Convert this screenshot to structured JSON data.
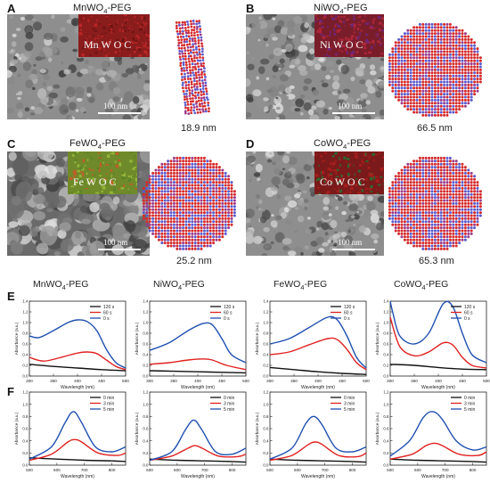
{
  "panels": [
    {
      "letter": "A",
      "material": "MnWO",
      "sub": "4",
      "suffix": "-PEG",
      "inset_label": "Mn W O C",
      "scale": "100 nm",
      "size": "18.9 nm",
      "inset_color": "#8a1c1c"
    },
    {
      "letter": "B",
      "material": "NiWO",
      "sub": "4",
      "suffix": "-PEG",
      "inset_label": "Ni W O C",
      "scale": "100 nm",
      "size": "66.5 nm",
      "inset_color": "#7a1d2a"
    },
    {
      "letter": "C",
      "material": "FeWO",
      "sub": "4",
      "suffix": "-PEG",
      "inset_label": "Fe W O C",
      "scale": "100 nm",
      "size": "25.2 nm",
      "inset_color": "#6f8a2a"
    },
    {
      "letter": "D",
      "material": "CoWO",
      "sub": "4",
      "suffix": "-PEG",
      "inset_label": "Co W O C",
      "scale": "100 nm",
      "size": "65.3 nm",
      "inset_color": "#7a1a1a"
    }
  ],
  "row_labels": {
    "E": "E",
    "F": "F"
  },
  "colors": {
    "black": "#111111",
    "red": "#e02020",
    "blue": "#1f4fb0"
  },
  "chart_data": [
    {
      "id": "E1",
      "type": "line",
      "title": "MnWO",
      "title_sub": "4",
      "title_suffix": "-PEG",
      "xlabel": "Wavelength (nm)",
      "ylabel": "Absorbance (a.u.)",
      "xlim": [
        300,
        500
      ],
      "ylim": [
        0,
        1.4
      ],
      "xticks": [
        "300",
        "350",
        "400",
        "450",
        "500"
      ],
      "yticks": [
        "0.0",
        "0.2",
        "0.4",
        "0.6",
        "0.8",
        "1.0",
        "1.2",
        "1.4"
      ],
      "legend": [
        "120 s",
        "60 s",
        "0 s"
      ],
      "series": [
        {
          "name": "120 s",
          "color": "black",
          "x": [
            300,
            350,
            400,
            450,
            500
          ],
          "y": [
            0.22,
            0.18,
            0.15,
            0.12,
            0.1
          ]
        },
        {
          "name": "60 s",
          "color": "red",
          "x": [
            300,
            330,
            370,
            400,
            420,
            440,
            460,
            480,
            500
          ],
          "y": [
            0.35,
            0.28,
            0.36,
            0.43,
            0.45,
            0.42,
            0.3,
            0.18,
            0.12
          ]
        },
        {
          "name": "0 s",
          "color": "blue",
          "x": [
            300,
            320,
            350,
            380,
            400,
            420,
            440,
            460,
            480,
            500
          ],
          "y": [
            0.75,
            0.72,
            0.85,
            1.0,
            1.05,
            1.02,
            0.85,
            0.5,
            0.25,
            0.15
          ]
        }
      ]
    },
    {
      "id": "E2",
      "type": "line",
      "title": "NiWO",
      "title_sub": "4",
      "title_suffix": "-PEG",
      "xlabel": "Wavelength (nm)",
      "ylabel": "Absorbance (a.u.)",
      "xlim": [
        300,
        500
      ],
      "ylim": [
        0,
        1.4
      ],
      "xticks": [
        "300",
        "350",
        "400",
        "450",
        "500"
      ],
      "yticks": [
        "0.0",
        "0.2",
        "0.4",
        "0.6",
        "0.8",
        "1.0",
        "1.2",
        "1.4"
      ],
      "legend": [
        "120 s",
        "60 s",
        "0 s"
      ],
      "series": [
        {
          "name": "120 s",
          "color": "black",
          "x": [
            300,
            350,
            400,
            450,
            500
          ],
          "y": [
            0.1,
            0.09,
            0.08,
            0.07,
            0.06
          ]
        },
        {
          "name": "60 s",
          "color": "red",
          "x": [
            300,
            340,
            380,
            410,
            430,
            460,
            500
          ],
          "y": [
            0.22,
            0.25,
            0.3,
            0.32,
            0.3,
            0.2,
            0.12
          ]
        },
        {
          "name": "0 s",
          "color": "blue",
          "x": [
            300,
            340,
            380,
            410,
            430,
            450,
            470,
            500
          ],
          "y": [
            0.48,
            0.62,
            0.85,
            0.98,
            0.96,
            0.7,
            0.4,
            0.25
          ]
        }
      ]
    },
    {
      "id": "E3",
      "type": "line",
      "title": "FeWO",
      "title_sub": "4",
      "title_suffix": "-PEG",
      "xlabel": "Wavelength (nm)",
      "ylabel": "Absorbance (a.u.)",
      "xlim": [
        300,
        500
      ],
      "ylim": [
        0,
        1.4
      ],
      "xticks": [
        "300",
        "350",
        "400",
        "450",
        "500"
      ],
      "yticks": [
        "0.0",
        "0.2",
        "0.4",
        "0.6",
        "0.8",
        "1.0",
        "1.2",
        "1.4"
      ],
      "legend": [
        "120 s",
        "60 s",
        "0 s"
      ],
      "series": [
        {
          "name": "120 s",
          "color": "black",
          "x": [
            300,
            350,
            400,
            450,
            500
          ],
          "y": [
            0.16,
            0.12,
            0.08,
            0.05,
            0.03
          ]
        },
        {
          "name": "60 s",
          "color": "red",
          "x": [
            300,
            340,
            380,
            420,
            440,
            460,
            480,
            500
          ],
          "y": [
            0.4,
            0.45,
            0.58,
            0.7,
            0.68,
            0.5,
            0.25,
            0.12
          ]
        },
        {
          "name": "0 s",
          "color": "blue",
          "x": [
            300,
            340,
            380,
            420,
            440,
            460,
            480,
            500
          ],
          "y": [
            0.6,
            0.7,
            0.9,
            1.1,
            1.05,
            0.75,
            0.35,
            0.15
          ]
        }
      ]
    },
    {
      "id": "E4",
      "type": "line",
      "title": "CoWO",
      "title_sub": "4",
      "title_suffix": "-PEG",
      "xlabel": "Wavelength (nm)",
      "ylabel": "Absorbance (a.u.)",
      "xlim": [
        300,
        500
      ],
      "ylim": [
        0,
        1.4
      ],
      "xticks": [
        "300",
        "350",
        "400",
        "450",
        "500"
      ],
      "yticks": [
        "0.0",
        "0.2",
        "0.4",
        "0.6",
        "0.8",
        "1.0",
        "1.2",
        "1.4"
      ],
      "legend": [
        "120 s",
        "60 s",
        "0 s"
      ],
      "series": [
        {
          "name": "120 s",
          "color": "black",
          "x": [
            300,
            350,
            400,
            450,
            500
          ],
          "y": [
            0.22,
            0.2,
            0.16,
            0.13,
            0.12
          ]
        },
        {
          "name": "60 s",
          "color": "red",
          "x": [
            300,
            320,
            350,
            380,
            410,
            430,
            450,
            470,
            500
          ],
          "y": [
            1.1,
            0.55,
            0.38,
            0.45,
            0.62,
            0.58,
            0.35,
            0.2,
            0.15
          ]
        },
        {
          "name": "0 s",
          "color": "blue",
          "x": [
            300,
            305,
            320,
            350,
            380,
            410,
            430,
            450,
            470,
            500
          ],
          "y": [
            1.4,
            1.2,
            0.75,
            0.6,
            0.8,
            1.35,
            1.3,
            0.8,
            0.4,
            0.25
          ]
        }
      ]
    },
    {
      "id": "F1",
      "type": "line",
      "xlabel": "Wavelength (nm)",
      "ylabel": "Absorbance (a.u.)",
      "xlim": [
        500,
        850
      ],
      "ylim": [
        0,
        1.2
      ],
      "xticks": [
        "500",
        "600",
        "700",
        "800"
      ],
      "yticks": [
        "0.0",
        "0.2",
        "0.4",
        "0.6",
        "0.8",
        "1.0",
        "1.2"
      ],
      "legend": [
        "0 min",
        "3 min",
        "5 min"
      ],
      "series": [
        {
          "name": "0 min",
          "color": "black",
          "x": [
            500,
            600,
            700,
            800,
            850
          ],
          "y": [
            0.12,
            0.1,
            0.08,
            0.07,
            0.06
          ]
        },
        {
          "name": "3 min",
          "color": "red",
          "x": [
            500,
            580,
            640,
            665,
            690,
            750,
            820,
            850
          ],
          "y": [
            0.08,
            0.18,
            0.38,
            0.42,
            0.38,
            0.2,
            0.16,
            0.2
          ]
        },
        {
          "name": "5 min",
          "color": "blue",
          "x": [
            500,
            580,
            630,
            660,
            690,
            740,
            800,
            850
          ],
          "y": [
            0.1,
            0.3,
            0.7,
            0.88,
            0.7,
            0.3,
            0.22,
            0.3
          ]
        }
      ]
    },
    {
      "id": "F2",
      "type": "line",
      "xlabel": "Wavelength (nm)",
      "ylabel": "Absorbance (a.u.)",
      "xlim": [
        500,
        850
      ],
      "ylim": [
        0,
        1.2
      ],
      "xticks": [
        "500",
        "600",
        "700",
        "800"
      ],
      "yticks": [
        "0.0",
        "0.2",
        "0.4",
        "0.6",
        "0.8",
        "1.0",
        "1.2"
      ],
      "legend": [
        "0 min",
        "3 min",
        "5 min"
      ],
      "series": [
        {
          "name": "0 min",
          "color": "black",
          "x": [
            500,
            600,
            700,
            800,
            850
          ],
          "y": [
            0.1,
            0.08,
            0.07,
            0.06,
            0.05
          ]
        },
        {
          "name": "3 min",
          "color": "red",
          "x": [
            500,
            580,
            640,
            665,
            690,
            750,
            820,
            850
          ],
          "y": [
            0.08,
            0.15,
            0.28,
            0.32,
            0.28,
            0.15,
            0.14,
            0.18
          ]
        },
        {
          "name": "5 min",
          "color": "blue",
          "x": [
            500,
            580,
            630,
            660,
            690,
            740,
            800,
            850
          ],
          "y": [
            0.08,
            0.22,
            0.58,
            0.74,
            0.58,
            0.22,
            0.18,
            0.28
          ]
        }
      ]
    },
    {
      "id": "F3",
      "type": "line",
      "xlabel": "Wavelength (nm)",
      "ylabel": "Absorbance (a.u.)",
      "xlim": [
        500,
        850
      ],
      "ylim": [
        0,
        1.2
      ],
      "xticks": [
        "500",
        "600",
        "700",
        "800"
      ],
      "yticks": [
        "0.0",
        "0.2",
        "0.4",
        "0.6",
        "0.8",
        "1.0",
        "1.2"
      ],
      "legend": [
        "0 min",
        "3 min",
        "5 min"
      ],
      "series": [
        {
          "name": "0 min",
          "color": "black",
          "x": [
            500,
            600,
            700,
            800,
            850
          ],
          "y": [
            0.1,
            0.08,
            0.07,
            0.06,
            0.05
          ]
        },
        {
          "name": "3 min",
          "color": "red",
          "x": [
            500,
            580,
            640,
            665,
            690,
            750,
            820,
            850
          ],
          "y": [
            0.08,
            0.16,
            0.34,
            0.38,
            0.34,
            0.16,
            0.14,
            0.2
          ]
        },
        {
          "name": "5 min",
          "color": "blue",
          "x": [
            500,
            580,
            630,
            660,
            690,
            740,
            800,
            850
          ],
          "y": [
            0.1,
            0.28,
            0.68,
            0.8,
            0.66,
            0.28,
            0.22,
            0.3
          ]
        }
      ]
    },
    {
      "id": "F4",
      "type": "line",
      "xlabel": "Wavelength (nm)",
      "ylabel": "Absorbance (a.u.)",
      "xlim": [
        500,
        850
      ],
      "ylim": [
        0,
        1.2
      ],
      "xticks": [
        "500",
        "600",
        "700",
        "800"
      ],
      "yticks": [
        "0.0",
        "0.2",
        "0.4",
        "0.6",
        "0.8",
        "1.0",
        "1.2"
      ],
      "legend": [
        "0 min",
        "3 min",
        "5 min"
      ],
      "series": [
        {
          "name": "0 min",
          "color": "black",
          "x": [
            500,
            600,
            700,
            800,
            850
          ],
          "y": [
            0.1,
            0.08,
            0.07,
            0.06,
            0.05
          ]
        },
        {
          "name": "3 min",
          "color": "red",
          "x": [
            500,
            580,
            630,
            660,
            690,
            750,
            820,
            850
          ],
          "y": [
            0.1,
            0.18,
            0.32,
            0.36,
            0.32,
            0.18,
            0.16,
            0.22
          ]
        },
        {
          "name": "5 min",
          "color": "blue",
          "x": [
            500,
            570,
            620,
            655,
            690,
            740,
            800,
            850
          ],
          "y": [
            0.15,
            0.4,
            0.78,
            0.88,
            0.75,
            0.4,
            0.25,
            0.3
          ]
        }
      ]
    }
  ]
}
